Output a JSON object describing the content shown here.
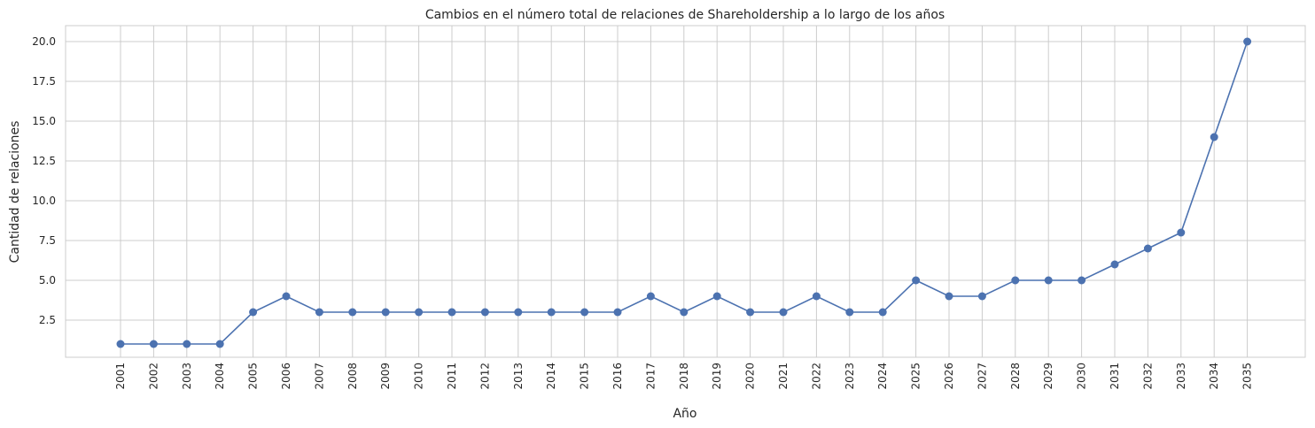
{
  "chart_data": {
    "type": "line",
    "title": "Cambios en el número total de relaciones de Shareholdership a lo largo de los años",
    "xlabel": "Año",
    "ylabel": "Cantidad de relaciones",
    "x": [
      "2001",
      "2002",
      "2003",
      "2004",
      "2005",
      "2006",
      "2007",
      "2008",
      "2009",
      "2010",
      "2011",
      "2012",
      "2013",
      "2014",
      "2015",
      "2016",
      "2017",
      "2018",
      "2019",
      "2020",
      "2021",
      "2022",
      "2023",
      "2024",
      "2025",
      "2026",
      "2027",
      "2028",
      "2029",
      "2030",
      "2031",
      "2032",
      "2033",
      "2034",
      "2035"
    ],
    "series": [
      {
        "values": [
          1,
          1,
          1,
          1,
          3,
          4,
          3,
          3,
          3,
          3,
          3,
          3,
          3,
          3,
          3,
          3,
          4,
          3,
          4,
          3,
          3,
          4,
          3,
          3,
          5,
          4,
          4,
          5,
          5,
          5,
          6,
          7,
          8,
          14,
          20
        ],
        "color": "#4c72b0",
        "marker": "circle"
      }
    ],
    "yticks": [
      "2.5",
      "5.0",
      "7.5",
      "10.0",
      "12.5",
      "15.0",
      "17.5",
      "20.0"
    ],
    "ylim": [
      0.05,
      20.95
    ],
    "grid": true,
    "legend": "none"
  }
}
